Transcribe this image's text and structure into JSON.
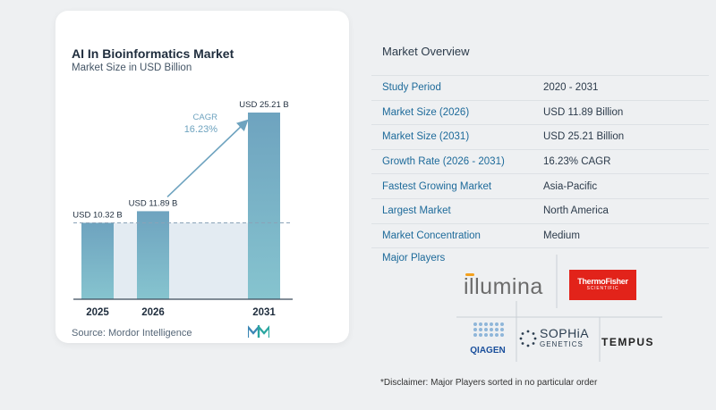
{
  "chart_title": "AI In Bioinformatics Market",
  "chart_subtitle": "Market Size in USD Billion",
  "source": "Source:  Mordor Intelligence",
  "cagr_label": "CAGR",
  "cagr_value": "16.23%",
  "chart_data": {
    "type": "bar",
    "categories": [
      "2025",
      "2026",
      "2031"
    ],
    "values": [
      10.32,
      11.89,
      25.21
    ],
    "value_labels": [
      "USD 10.32 B",
      "USD 11.89 B",
      "USD 25.21 B"
    ],
    "title": "AI In Bioinformatics Market",
    "subtitle": "Market Size in USD Billion",
    "xlabel": "",
    "ylabel": "",
    "ylim": [
      0,
      25.21
    ],
    "bar_color": "#6ea3bf",
    "bar_color_light": "#86c4cf",
    "arrow_color": "#6ea3bf"
  },
  "overview": {
    "title": "Market Overview",
    "rows": [
      {
        "label": "Study Period",
        "value": "2020 - 2031"
      },
      {
        "label": "Market Size (2026)",
        "value": "USD 11.89 Billion"
      },
      {
        "label": "Market Size (2031)",
        "value": "USD 25.21 Billion"
      },
      {
        "label": "Growth Rate (2026 - 2031)",
        "value": "16.23% CAGR"
      },
      {
        "label": "Fastest Growing Market",
        "value": "Asia-Pacific"
      },
      {
        "label": "Largest Market",
        "value": "North America"
      },
      {
        "label": "Market Concentration",
        "value": "Medium"
      }
    ]
  },
  "major_players": {
    "title": "Major Players",
    "logos": {
      "illumina": "illumina",
      "thermo_line1": "ThermoFisher",
      "thermo_line2": "SCIENTIFIC",
      "qiagen": "QIAGEN",
      "sophia_line1": "SOPHiA",
      "sophia_line2": "GENETICS",
      "tempus": "TEMPUS"
    }
  },
  "disclaimer": "*Disclaimer: Major Players sorted in no particular order",
  "colors": {
    "key_text": "#1d6a9a",
    "thermo_red": "#e2231a",
    "illumina_orange": "#f4a11e"
  }
}
